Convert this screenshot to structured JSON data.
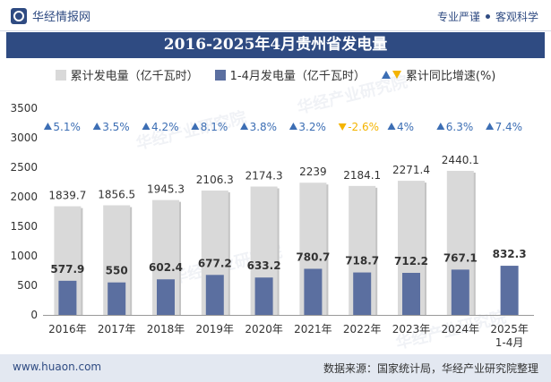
{
  "header": {
    "brand": "华经情报网",
    "slogan_left": "专业严谨",
    "slogan_right": "客观科学"
  },
  "title": "2016-2025年4月贵州省发电量",
  "legend": {
    "cumulative": "累计发电量（亿千瓦时）",
    "period": "1-4月发电量（亿千瓦时）",
    "growth": "累计同比增速(%)"
  },
  "colors": {
    "cumulative": "#d9d9d9",
    "period": "#5b6fa0",
    "up": "#3c6eb4",
    "down": "#f4b400",
    "header": "#2f4b82"
  },
  "footer": {
    "website": "www.huaon.com",
    "source": "数据来源：国家统计局，华经产业研究院整理"
  },
  "watermark": "华经产业研究院",
  "chart_data": {
    "type": "bar",
    "categories": [
      "2016年",
      "2017年",
      "2018年",
      "2019年",
      "2020年",
      "2021年",
      "2022年",
      "2023年",
      "2024年",
      "2025年\n1-4月"
    ],
    "series": [
      {
        "name": "累计发电量（亿千瓦时）",
        "values": [
          1839.7,
          1856.5,
          1945.3,
          2106.3,
          2174.3,
          2239,
          2184.1,
          2271.4,
          2440.1,
          null
        ]
      },
      {
        "name": "1-4月发电量（亿千瓦时）",
        "values": [
          577.9,
          550,
          602.4,
          677.2,
          633.2,
          780.7,
          718.7,
          712.2,
          767.1,
          832.3
        ]
      }
    ],
    "growth": {
      "name": "累计同比增速(%)",
      "values": [
        5.1,
        3.5,
        4.2,
        8.1,
        3.8,
        3.2,
        -2.6,
        4,
        6.3,
        7.4
      ],
      "labels": [
        "5.1%",
        "3.5%",
        "4.2%",
        "8.1%",
        "3.8%",
        "3.2%",
        "-2.6%",
        "4%",
        "6.3%",
        "7.4%"
      ]
    },
    "ylim": [
      0,
      3500
    ],
    "yticks": [
      0,
      500,
      1000,
      1500,
      2000,
      2500,
      3000,
      3500
    ],
    "grid": false,
    "legend_position": "top"
  }
}
